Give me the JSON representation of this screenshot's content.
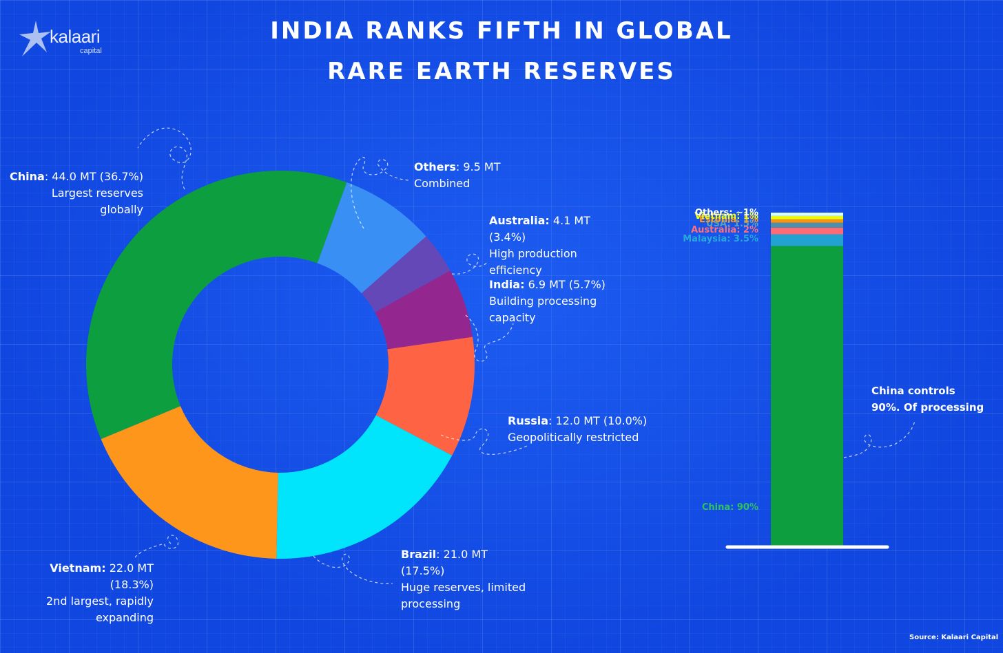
{
  "header": {
    "logo_brand": "kalaari",
    "logo_sub": "capital",
    "title_line1": "INDIA RANKS FIFTH IN GLOBAL",
    "title_line2": "RARE EARTH RESERVES"
  },
  "chart_data": [
    {
      "type": "pie",
      "subtype": "donut",
      "unit": "MT",
      "slices": [
        {
          "name": "China",
          "value": 44.0,
          "percent": "36.7%",
          "note": "Largest reserves globally",
          "color": "#0d9f3f",
          "value_text": ": 44.0 MT (36.7%)"
        },
        {
          "name": "Others",
          "value": 9.5,
          "percent": "",
          "note": "Combined",
          "color": "#3a8ff5",
          "value_text": ": 9.5 MT"
        },
        {
          "name": "Australia",
          "value": 4.1,
          "percent": "3.4%",
          "note": "High production efficiency",
          "color": "#6548b8",
          "value_text": " 4.1 MT (3.4%)"
        },
        {
          "name": "India",
          "value": 6.9,
          "percent": "5.7%",
          "note": "Building processing capacity",
          "color": "#93278f",
          "value_text": " 6.9 MT (5.7%)"
        },
        {
          "name": "Russia",
          "value": 12.0,
          "percent": "10.0%",
          "note": "Geopolitically restricted",
          "color": "#fe6343",
          "value_text": ": 12.0 MT (10.0%)"
        },
        {
          "name": "Brazil",
          "value": 21.0,
          "percent": "17.5%",
          "note": "Huge reserves, limited processing",
          "color": "#00e5fb",
          "value_text": ": 21.0 MT (17.5%)"
        },
        {
          "name": "Vietnam",
          "value": 22.0,
          "percent": "18.3%",
          "note": "2nd largest, rapidly expanding",
          "color": "#fe961c",
          "value_text": " 22.0 MT (18.3%)"
        }
      ]
    },
    {
      "type": "bar",
      "subtype": "stacked",
      "topic": "processing",
      "annotation_line1": "China controls",
      "annotation_line2": "90%. Of processing",
      "segments": [
        {
          "label": "China: 90%",
          "value": 90,
          "color": "#0d9f3f",
          "label_color": "#2fc25c"
        },
        {
          "label": "Malaysia: 3.5%",
          "value": 3.5,
          "color": "#22a2d0",
          "label_color": "#27a8d8"
        },
        {
          "label": "Australia: 2%",
          "value": 2,
          "color": "#fe6b75",
          "label_color": "#ff6f78"
        },
        {
          "label": "USA: 1.5%",
          "value": 1.5,
          "color": "#4c90a9",
          "label_color": "#58a0bd"
        },
        {
          "label": "Estonia: 1%",
          "value": 1,
          "color": "#fe920c",
          "label_color": "#ff9a1a"
        },
        {
          "label": "Vietnam: 1%",
          "value": 1,
          "color": "#e8fb0c",
          "label_color": "#f0ff10"
        },
        {
          "label": "Others: ~1%",
          "value": 1,
          "color": "#d9fbfb",
          "label_color": "#ffffff"
        }
      ]
    }
  ],
  "footer": {
    "source": "Source: Kalaari Capital"
  }
}
